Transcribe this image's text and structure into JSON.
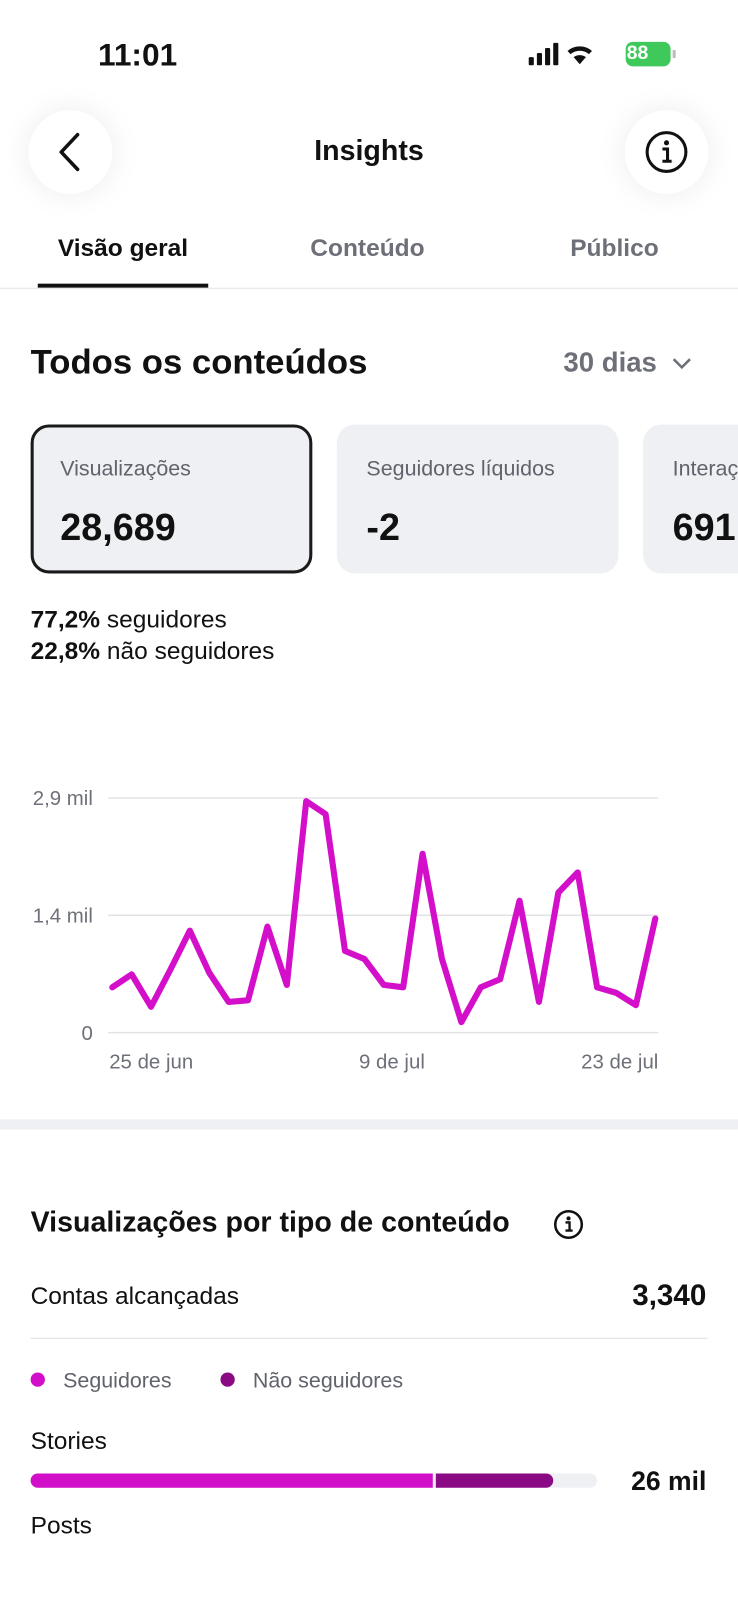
{
  "status_bar": {
    "time": "11:01",
    "battery": "88"
  },
  "header": {
    "title": "Insights"
  },
  "tabs": [
    "Visão geral",
    "Conteúdo",
    "Público"
  ],
  "section": {
    "title": "Todos os conteúdos",
    "period": "30 dias"
  },
  "cards": [
    {
      "label": "Visualizações",
      "value": "28,689"
    },
    {
      "label": "Seguidores líquidos",
      "value": "-2"
    },
    {
      "label": "Interações",
      "value": "691"
    }
  ],
  "audience": [
    {
      "pct": "77,2%",
      "label": "seguidores"
    },
    {
      "pct": "22,8%",
      "label": "não seguidores"
    }
  ],
  "chart_data": {
    "type": "line",
    "color": "#d40fc9",
    "categories": [
      "25 de jun",
      null,
      null,
      null,
      null,
      null,
      null,
      null,
      null,
      null,
      null,
      null,
      null,
      null,
      "9 de jul",
      null,
      null,
      null,
      null,
      null,
      null,
      null,
      null,
      null,
      null,
      null,
      null,
      null,
      "23 de jul"
    ],
    "values": [
      560,
      720,
      320,
      780,
      1260,
      740,
      380,
      400,
      1310,
      590,
      2860,
      2700,
      1010,
      910,
      590,
      560,
      2210,
      910,
      130,
      560,
      660,
      1630,
      380,
      1730,
      1980,
      560,
      490,
      340,
      1410
    ],
    "ylim": [
      0,
      2900
    ],
    "yticks": [
      0,
      {
        "value": 1450,
        "label": "1,4 mil"
      },
      {
        "value": 2900,
        "label": "2,9 mil"
      }
    ],
    "grid": true
  },
  "breakdown": {
    "title": "Visualizações por tipo de conteúdo",
    "reach_label": "Contas alcançadas",
    "reach_value": "3,340",
    "legend": [
      {
        "name": "Seguidores",
        "color": "#d10fc8"
      },
      {
        "name": "Não seguidores",
        "color": "#8a0a84"
      }
    ],
    "rows": [
      {
        "label": "Stories",
        "value": "26 mil"
      },
      {
        "label": "Posts"
      }
    ]
  }
}
